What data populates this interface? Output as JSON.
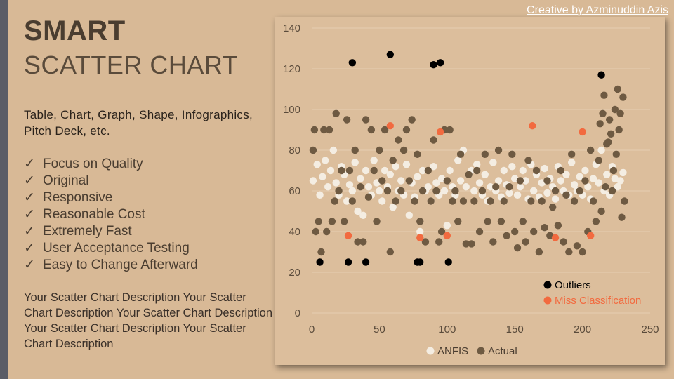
{
  "title": "SMART",
  "subtitle": "SCATTER CHART",
  "intro": "Table, Chart, Graph, Shape, Infographics, Pitch Deck, etc.",
  "features": [
    "Focus on Quality",
    "Original",
    "Responsive",
    "Reasonable Cost",
    "Extremely Fast",
    "User Acceptance Testing",
    "Easy to Change Afterward"
  ],
  "check_mark": "✓",
  "description": "Your Scatter Chart Description Your Scatter Chart Description Your Scatter Chart Description Your Scatter Chart Description Your Scatter Chart Description",
  "credit": "Creative by Azminuddin Azis",
  "colors": {
    "background": "#d8b996",
    "panel": "#dcbe9c",
    "anfis": "#f4ede2",
    "actual": "#6e5a42",
    "outliers": "#000000",
    "miss": "#f26a3f"
  },
  "chart_data": {
    "type": "scatter",
    "x_ticks": [
      0,
      50,
      100,
      150,
      200,
      250
    ],
    "y_ticks": [
      0,
      20,
      40,
      60,
      80,
      100,
      120,
      140
    ],
    "xlim": [
      0,
      250
    ],
    "ylim": [
      0,
      140
    ],
    "grid": "horizontal",
    "legend_top": {
      "position": "bottom-right",
      "entries": [
        "Outliers",
        "Miss Classification"
      ]
    },
    "legend_bottom": {
      "position": "bottom",
      "entries": [
        "ANFIS",
        "Actual"
      ]
    },
    "series": [
      {
        "name": "ANFIS",
        "color": "#f4ede2",
        "points": [
          [
            1,
            65
          ],
          [
            4,
            73
          ],
          [
            6,
            58
          ],
          [
            8,
            67
          ],
          [
            10,
            75
          ],
          [
            12,
            62
          ],
          [
            14,
            70
          ],
          [
            16,
            80
          ],
          [
            18,
            64
          ],
          [
            20,
            58
          ],
          [
            22,
            72
          ],
          [
            24,
            68
          ],
          [
            26,
            55
          ],
          [
            28,
            63
          ],
          [
            30,
            60
          ],
          [
            32,
            74
          ],
          [
            34,
            50
          ],
          [
            36,
            66
          ],
          [
            38,
            48
          ],
          [
            40,
            70
          ],
          [
            42,
            62
          ],
          [
            44,
            58
          ],
          [
            46,
            75
          ],
          [
            48,
            64
          ],
          [
            50,
            60
          ],
          [
            52,
            55
          ],
          [
            54,
            70
          ],
          [
            56,
            62
          ],
          [
            58,
            68
          ],
          [
            60,
            52
          ],
          [
            62,
            72
          ],
          [
            64,
            60
          ],
          [
            66,
            65
          ],
          [
            68,
            58
          ],
          [
            70,
            73
          ],
          [
            72,
            48
          ],
          [
            74,
            64
          ],
          [
            76,
            57
          ],
          [
            78,
            67
          ],
          [
            80,
            40
          ],
          [
            82,
            70
          ],
          [
            84,
            60
          ],
          [
            86,
            62
          ],
          [
            88,
            55
          ],
          [
            90,
            72
          ],
          [
            92,
            64
          ],
          [
            94,
            58
          ],
          [
            96,
            66
          ],
          [
            98,
            60
          ],
          [
            100,
            43
          ],
          [
            102,
            70
          ],
          [
            104,
            62
          ],
          [
            106,
            58
          ],
          [
            108,
            75
          ],
          [
            110,
            65
          ],
          [
            112,
            80
          ],
          [
            114,
            62
          ],
          [
            116,
            68
          ],
          [
            118,
            70
          ],
          [
            120,
            60
          ],
          [
            122,
            73
          ],
          [
            124,
            64
          ],
          [
            126,
            58
          ],
          [
            128,
            68
          ],
          [
            130,
            55
          ],
          [
            132,
            62
          ],
          [
            134,
            74
          ],
          [
            136,
            60
          ],
          [
            138,
            65
          ],
          [
            140,
            57
          ],
          [
            142,
            70
          ],
          [
            144,
            63
          ],
          [
            146,
            59
          ],
          [
            148,
            72
          ],
          [
            150,
            66
          ],
          [
            152,
            58
          ],
          [
            154,
            62
          ],
          [
            156,
            70
          ],
          [
            158,
            65
          ],
          [
            160,
            56
          ],
          [
            162,
            73
          ],
          [
            164,
            60
          ],
          [
            166,
            68
          ],
          [
            168,
            57
          ],
          [
            170,
            64
          ],
          [
            172,
            71
          ],
          [
            174,
            59
          ],
          [
            176,
            66
          ],
          [
            178,
            62
          ],
          [
            180,
            56
          ],
          [
            182,
            72
          ],
          [
            184,
            65
          ],
          [
            186,
            60
          ],
          [
            188,
            68
          ],
          [
            190,
            58
          ],
          [
            192,
            74
          ],
          [
            194,
            63
          ],
          [
            196,
            60
          ],
          [
            198,
            67
          ],
          [
            200,
            58
          ],
          [
            202,
            70
          ],
          [
            204,
            62
          ],
          [
            206,
            56
          ],
          [
            208,
            66
          ],
          [
            210,
            73
          ],
          [
            212,
            64
          ],
          [
            214,
            80
          ],
          [
            216,
            60
          ],
          [
            218,
            68
          ],
          [
            220,
            58
          ],
          [
            222,
            72
          ],
          [
            224,
            66
          ],
          [
            226,
            62
          ],
          [
            228,
            65
          ],
          [
            230,
            69
          ]
        ]
      },
      {
        "name": "Actual",
        "color": "#6e5a42",
        "points": [
          [
            1,
            80
          ],
          [
            2,
            90
          ],
          [
            3,
            40
          ],
          [
            5,
            45
          ],
          [
            7,
            30
          ],
          [
            9,
            90
          ],
          [
            11,
            40
          ],
          [
            13,
            90
          ],
          [
            15,
            45
          ],
          [
            17,
            55
          ],
          [
            18,
            98
          ],
          [
            20,
            60
          ],
          [
            22,
            70
          ],
          [
            24,
            45
          ],
          [
            26,
            95
          ],
          [
            28,
            70
          ],
          [
            30,
            55
          ],
          [
            32,
            80
          ],
          [
            34,
            35
          ],
          [
            36,
            62
          ],
          [
            38,
            35
          ],
          [
            40,
            95
          ],
          [
            42,
            57
          ],
          [
            44,
            90
          ],
          [
            46,
            70
          ],
          [
            48,
            45
          ],
          [
            50,
            80
          ],
          [
            52,
            65
          ],
          [
            54,
            90
          ],
          [
            56,
            60
          ],
          [
            58,
            30
          ],
          [
            60,
            75
          ],
          [
            62,
            55
          ],
          [
            64,
            85
          ],
          [
            66,
            60
          ],
          [
            68,
            80
          ],
          [
            70,
            90
          ],
          [
            72,
            65
          ],
          [
            74,
            95
          ],
          [
            76,
            55
          ],
          [
            78,
            78
          ],
          [
            80,
            45
          ],
          [
            82,
            60
          ],
          [
            84,
            35
          ],
          [
            86,
            70
          ],
          [
            88,
            55
          ],
          [
            90,
            85
          ],
          [
            92,
            60
          ],
          [
            94,
            35
          ],
          [
            96,
            40
          ],
          [
            98,
            90
          ],
          [
            100,
            65
          ],
          [
            102,
            90
          ],
          [
            104,
            55
          ],
          [
            106,
            60
          ],
          [
            108,
            45
          ],
          [
            110,
            78
          ],
          [
            112,
            55
          ],
          [
            114,
            34
          ],
          [
            116,
            68
          ],
          [
            118,
            34
          ],
          [
            120,
            55
          ],
          [
            122,
            70
          ],
          [
            124,
            40
          ],
          [
            126,
            60
          ],
          [
            128,
            78
          ],
          [
            130,
            45
          ],
          [
            132,
            55
          ],
          [
            134,
            35
          ],
          [
            136,
            62
          ],
          [
            138,
            80
          ],
          [
            140,
            45
          ],
          [
            142,
            55
          ],
          [
            144,
            38
          ],
          [
            146,
            62
          ],
          [
            148,
            78
          ],
          [
            150,
            40
          ],
          [
            152,
            32
          ],
          [
            154,
            65
          ],
          [
            156,
            45
          ],
          [
            158,
            35
          ],
          [
            160,
            75
          ],
          [
            162,
            55
          ],
          [
            164,
            40
          ],
          [
            166,
            70
          ],
          [
            168,
            30
          ],
          [
            170,
            55
          ],
          [
            172,
            42
          ],
          [
            174,
            65
          ],
          [
            176,
            38
          ],
          [
            178,
            52
          ],
          [
            180,
            60
          ],
          [
            182,
            43
          ],
          [
            184,
            70
          ],
          [
            186,
            35
          ],
          [
            188,
            58
          ],
          [
            190,
            30
          ],
          [
            192,
            78
          ],
          [
            194,
            55
          ],
          [
            196,
            33
          ],
          [
            198,
            60
          ],
          [
            200,
            30
          ],
          [
            202,
            65
          ],
          [
            204,
            40
          ],
          [
            206,
            80
          ],
          [
            208,
            55
          ],
          [
            210,
            45
          ],
          [
            212,
            75
          ],
          [
            214,
            50
          ],
          [
            216,
            107
          ],
          [
            218,
            83
          ],
          [
            220,
            95
          ],
          [
            222,
            60
          ],
          [
            224,
            100
          ],
          [
            226,
            110
          ],
          [
            228,
            98
          ],
          [
            230,
            106
          ],
          [
            231,
            55
          ],
          [
            229,
            47
          ],
          [
            227,
            90
          ],
          [
            225,
            78
          ],
          [
            223,
            70
          ],
          [
            221,
            88
          ],
          [
            219,
            84
          ],
          [
            217,
            62
          ],
          [
            215,
            98
          ],
          [
            213,
            93
          ]
        ]
      },
      {
        "name": "Outliers",
        "color": "#000000",
        "points": [
          [
            6,
            25
          ],
          [
            27,
            25
          ],
          [
            30,
            123
          ],
          [
            40,
            25
          ],
          [
            58,
            127
          ],
          [
            78,
            25
          ],
          [
            80,
            25
          ],
          [
            90,
            122
          ],
          [
            95,
            123
          ],
          [
            101,
            25
          ],
          [
            214,
            117
          ]
        ]
      },
      {
        "name": "Miss Classification",
        "color": "#f26a3f",
        "points": [
          [
            27,
            38
          ],
          [
            58,
            92
          ],
          [
            80,
            37
          ],
          [
            95,
            89
          ],
          [
            100,
            38
          ],
          [
            163,
            92
          ],
          [
            200,
            89
          ],
          [
            206,
            38
          ],
          [
            180,
            37
          ]
        ]
      }
    ]
  }
}
